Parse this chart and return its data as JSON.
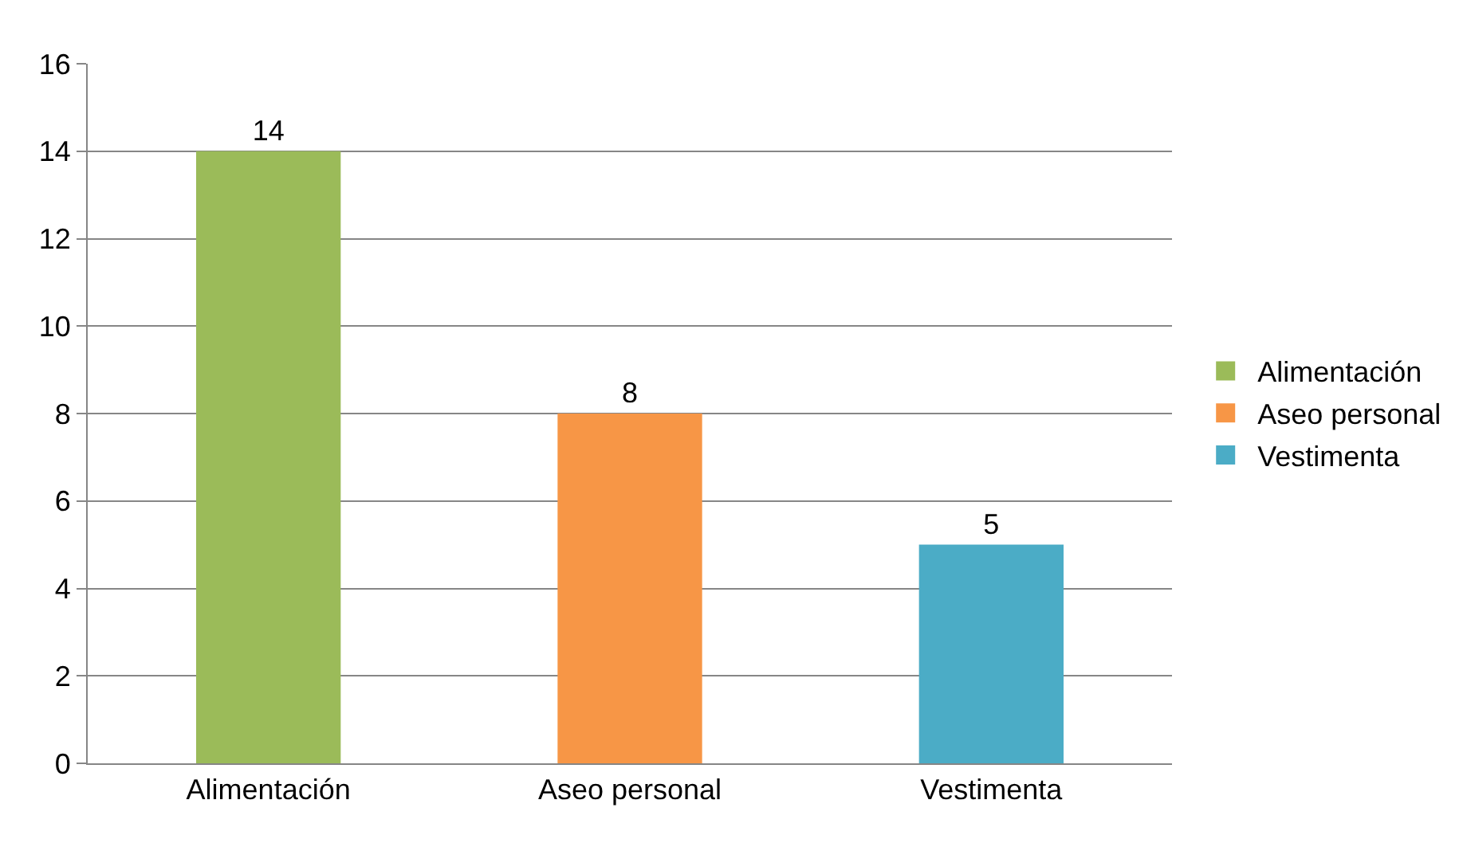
{
  "chart_data": {
    "type": "bar",
    "categories": [
      "Alimentación",
      "Aseo personal",
      "Vestimenta"
    ],
    "series": [
      {
        "name": "Alimentación",
        "color": "#9bbb59",
        "values": [
          14,
          null,
          null
        ]
      },
      {
        "name": "Aseo personal",
        "color": "#f79646",
        "values": [
          null,
          8,
          null
        ]
      },
      {
        "name": "Vestimenta",
        "color": "#4bacc6",
        "values": [
          null,
          null,
          5
        ]
      }
    ],
    "ylim": [
      0,
      16
    ],
    "yticks": [
      0,
      2,
      4,
      6,
      8,
      10,
      12,
      14,
      16
    ],
    "grid": "y",
    "legend": "right",
    "data_labels": true
  }
}
